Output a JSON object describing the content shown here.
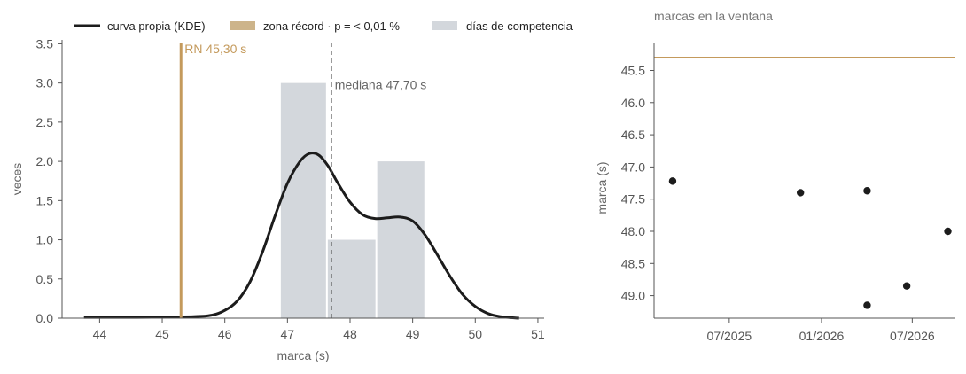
{
  "colors": {
    "kde": "#1c1c1c",
    "record": "#c49a5c",
    "record_band": "#cdb48a",
    "hist": "#d3d7dc",
    "median": "#555555",
    "axis": "#555555",
    "points": "#1c1c1c",
    "text_muted": "#666666"
  },
  "legend": {
    "kde": "curva propia (KDE)",
    "record_zone": "zona récord · p = < 0,01 %",
    "hist": "días de competencia"
  },
  "chart_data": [
    {
      "type": "histogram",
      "title": "",
      "xlabel": "marca (s)",
      "ylabel": "veces",
      "xlim": [
        43.4,
        51.1
      ],
      "ylim": [
        0,
        3.55
      ],
      "xticks": [
        44,
        45,
        46,
        47,
        48,
        49,
        50,
        51
      ],
      "yticks": [
        0.0,
        0.5,
        1.0,
        1.5,
        2.0,
        2.5,
        3.0,
        3.5
      ],
      "bins": [
        {
          "x0": 46.88,
          "x1": 47.63,
          "count": 3
        },
        {
          "x0": 47.63,
          "x1": 48.42,
          "count": 1
        },
        {
          "x0": 48.42,
          "x1": 49.2,
          "count": 2
        }
      ],
      "kde": {
        "x": [
          43.75,
          44.5,
          45.5,
          45.8,
          46.0,
          46.2,
          46.4,
          46.6,
          46.8,
          47.0,
          47.2,
          47.35,
          47.5,
          47.65,
          47.8,
          48.0,
          48.2,
          48.4,
          48.6,
          48.8,
          49.0,
          49.2,
          49.4,
          49.6,
          49.8,
          50.0,
          50.2,
          50.4,
          50.7
        ],
        "y": [
          0.01,
          0.01,
          0.02,
          0.04,
          0.1,
          0.22,
          0.46,
          0.84,
          1.3,
          1.72,
          2.0,
          2.1,
          2.08,
          1.94,
          1.73,
          1.48,
          1.32,
          1.27,
          1.28,
          1.29,
          1.24,
          1.06,
          0.8,
          0.53,
          0.3,
          0.15,
          0.06,
          0.02,
          0.0
        ]
      },
      "record": {
        "value": 45.3,
        "label": "RN 45,30 s"
      },
      "median": {
        "value": 47.7,
        "label": "mediana 47,70 s"
      }
    },
    {
      "type": "scatter",
      "title": "marcas en la ventana",
      "xlabel": "",
      "ylabel": "marca (s)",
      "y_inverted": true,
      "ylim": [
        49.35,
        45.08
      ],
      "yticks": [
        45.5,
        46.0,
        46.5,
        47.0,
        47.5,
        48.0,
        48.5,
        49.0
      ],
      "xlim": [
        "2025-02-01",
        "2026-09-25"
      ],
      "xticks": [
        {
          "date": "2025-07-01",
          "label": "07/2025"
        },
        {
          "date": "2026-01-01",
          "label": "01/2026"
        },
        {
          "date": "2026-07-01",
          "label": "07/2026"
        }
      ],
      "record_line": 45.3,
      "points": [
        {
          "date": "2025-03-10",
          "value": 47.22
        },
        {
          "date": "2025-11-20",
          "value": 47.4
        },
        {
          "date": "2026-04-02",
          "value": 47.37
        },
        {
          "date": "2026-04-02",
          "value": 49.15
        },
        {
          "date": "2026-06-20",
          "value": 48.85
        },
        {
          "date": "2026-09-10",
          "value": 48.0
        }
      ]
    }
  ]
}
